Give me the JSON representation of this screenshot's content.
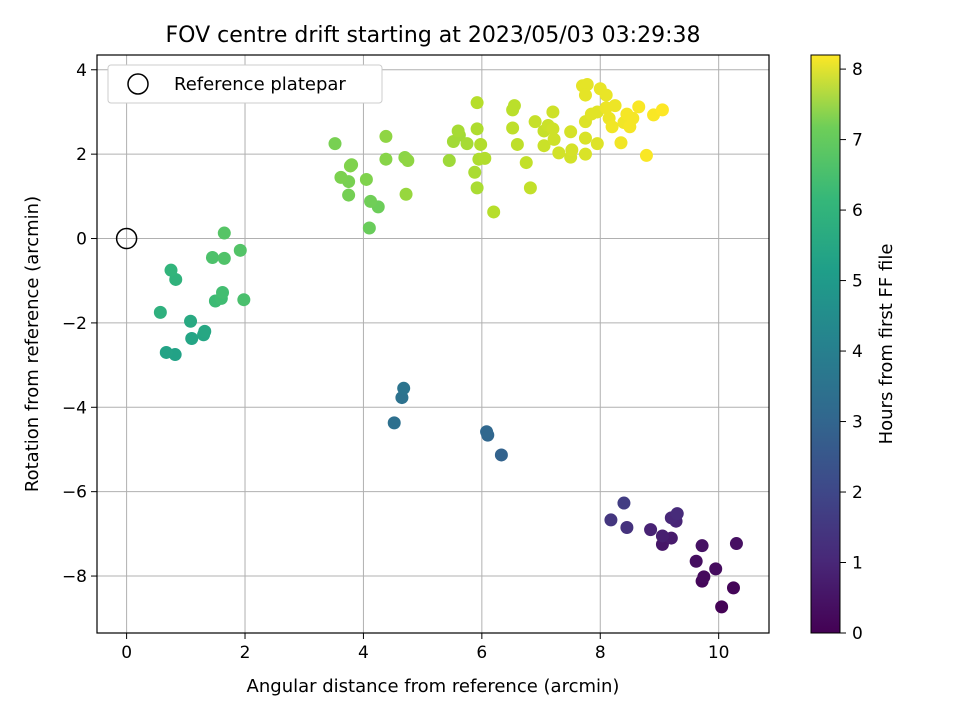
{
  "chart_data": {
    "type": "scatter",
    "title": "FOV centre drift starting at 2023/05/03 03:29:38",
    "xlabel": "Angular distance from reference (arcmin)",
    "ylabel": "Rotation from reference (arcmin)",
    "xlim": [
      -0.5,
      10.85
    ],
    "ylim": [
      -9.35,
      4.35
    ],
    "xticks": [
      0,
      2,
      4,
      6,
      8,
      10
    ],
    "yticks": [
      -8,
      -6,
      -4,
      -2,
      0,
      2,
      4
    ],
    "xtick_labels": [
      "0",
      "2",
      "4",
      "6",
      "8",
      "10"
    ],
    "ytick_labels": [
      "−8",
      "−6",
      "−4",
      "−2",
      "0",
      "2",
      "4"
    ],
    "grid": true,
    "legend": {
      "placement": "top-left",
      "entries": [
        "Reference platepar"
      ]
    },
    "reference_point": {
      "x": 0,
      "y": 0
    },
    "colorbar": {
      "label": "Hours from first FF file",
      "range": [
        0,
        8.2
      ],
      "ticks": [
        0,
        1,
        2,
        3,
        4,
        5,
        6,
        7,
        8
      ],
      "tick_labels": [
        "0",
        "1",
        "2",
        "3",
        "4",
        "5",
        "6",
        "7",
        "8"
      ],
      "colormap": "viridis"
    },
    "points": [
      {
        "x": 10.05,
        "y": -8.73,
        "h": 0.05
      },
      {
        "x": 10.25,
        "y": -8.28,
        "h": 0.1
      },
      {
        "x": 9.72,
        "y": -8.12,
        "h": 0.15
      },
      {
        "x": 9.75,
        "y": -8.02,
        "h": 0.2
      },
      {
        "x": 9.95,
        "y": -7.83,
        "h": 0.25
      },
      {
        "x": 9.62,
        "y": -7.65,
        "h": 0.3
      },
      {
        "x": 10.3,
        "y": -7.23,
        "h": 0.35
      },
      {
        "x": 9.72,
        "y": -7.28,
        "h": 0.4
      },
      {
        "x": 9.05,
        "y": -7.25,
        "h": 0.5
      },
      {
        "x": 9.2,
        "y": -7.1,
        "h": 0.6
      },
      {
        "x": 9.05,
        "y": -7.05,
        "h": 0.7
      },
      {
        "x": 8.85,
        "y": -6.9,
        "h": 0.8
      },
      {
        "x": 9.28,
        "y": -6.7,
        "h": 0.85
      },
      {
        "x": 9.2,
        "y": -6.62,
        "h": 0.9
      },
      {
        "x": 9.3,
        "y": -6.52,
        "h": 1.0
      },
      {
        "x": 8.45,
        "y": -6.85,
        "h": 1.2
      },
      {
        "x": 8.18,
        "y": -6.67,
        "h": 1.3
      },
      {
        "x": 8.4,
        "y": -6.27,
        "h": 1.5
      },
      {
        "x": 6.33,
        "y": -5.13,
        "h": 2.6
      },
      {
        "x": 6.1,
        "y": -4.66,
        "h": 2.7
      },
      {
        "x": 6.08,
        "y": -4.58,
        "h": 2.75
      },
      {
        "x": 4.52,
        "y": -4.37,
        "h": 3.0
      },
      {
        "x": 4.65,
        "y": -3.77,
        "h": 3.1
      },
      {
        "x": 4.68,
        "y": -3.55,
        "h": 3.15
      },
      {
        "x": 0.82,
        "y": -2.75,
        "h": 4.7
      },
      {
        "x": 0.67,
        "y": -2.7,
        "h": 4.75
      },
      {
        "x": 1.1,
        "y": -2.37,
        "h": 4.8
      },
      {
        "x": 1.3,
        "y": -2.28,
        "h": 4.85
      },
      {
        "x": 1.32,
        "y": -2.2,
        "h": 4.9
      },
      {
        "x": 1.08,
        "y": -1.96,
        "h": 4.95
      },
      {
        "x": 0.57,
        "y": -1.75,
        "h": 5.2
      },
      {
        "x": 0.83,
        "y": -0.97,
        "h": 5.3
      },
      {
        "x": 0.75,
        "y": -0.75,
        "h": 5.35
      },
      {
        "x": 1.5,
        "y": -1.48,
        "h": 5.6
      },
      {
        "x": 1.6,
        "y": -1.42,
        "h": 5.65
      },
      {
        "x": 1.62,
        "y": -1.28,
        "h": 5.7
      },
      {
        "x": 1.98,
        "y": -1.45,
        "h": 5.8
      },
      {
        "x": 1.45,
        "y": -0.45,
        "h": 5.85
      },
      {
        "x": 1.65,
        "y": -0.47,
        "h": 5.9
      },
      {
        "x": 1.92,
        "y": -0.28,
        "h": 5.95
      },
      {
        "x": 1.65,
        "y": 0.13,
        "h": 6.0
      },
      {
        "x": 4.1,
        "y": 0.25,
        "h": 6.3
      },
      {
        "x": 4.25,
        "y": 0.75,
        "h": 6.35
      },
      {
        "x": 4.12,
        "y": 0.88,
        "h": 6.4
      },
      {
        "x": 3.75,
        "y": 1.03,
        "h": 6.45
      },
      {
        "x": 3.75,
        "y": 1.35,
        "h": 6.5
      },
      {
        "x": 3.62,
        "y": 1.45,
        "h": 6.55
      },
      {
        "x": 4.05,
        "y": 1.4,
        "h": 6.6
      },
      {
        "x": 3.78,
        "y": 1.72,
        "h": 6.65
      },
      {
        "x": 3.8,
        "y": 1.75,
        "h": 6.6
      },
      {
        "x": 3.52,
        "y": 2.25,
        "h": 6.5
      },
      {
        "x": 4.38,
        "y": 1.88,
        "h": 6.7
      },
      {
        "x": 4.7,
        "y": 1.92,
        "h": 6.75
      },
      {
        "x": 4.75,
        "y": 1.85,
        "h": 6.8
      },
      {
        "x": 4.38,
        "y": 2.42,
        "h": 6.8
      },
      {
        "x": 4.72,
        "y": 1.05,
        "h": 6.9
      },
      {
        "x": 5.45,
        "y": 1.85,
        "h": 7.0
      },
      {
        "x": 5.52,
        "y": 2.3,
        "h": 7.05
      },
      {
        "x": 5.62,
        "y": 2.45,
        "h": 7.05
      },
      {
        "x": 5.6,
        "y": 2.55,
        "h": 7.1
      },
      {
        "x": 5.75,
        "y": 2.25,
        "h": 7.1
      },
      {
        "x": 5.88,
        "y": 1.57,
        "h": 7.15
      },
      {
        "x": 5.92,
        "y": 1.2,
        "h": 7.15
      },
      {
        "x": 5.95,
        "y": 1.88,
        "h": 7.2
      },
      {
        "x": 5.92,
        "y": 2.6,
        "h": 7.2
      },
      {
        "x": 5.98,
        "y": 2.23,
        "h": 7.25
      },
      {
        "x": 6.05,
        "y": 1.9,
        "h": 7.25
      },
      {
        "x": 6.2,
        "y": 0.63,
        "h": 7.3
      },
      {
        "x": 5.92,
        "y": 3.22,
        "h": 7.3
      },
      {
        "x": 6.52,
        "y": 3.05,
        "h": 7.35
      },
      {
        "x": 6.55,
        "y": 3.15,
        "h": 7.35
      },
      {
        "x": 6.52,
        "y": 2.62,
        "h": 7.4
      },
      {
        "x": 6.6,
        "y": 2.23,
        "h": 7.4
      },
      {
        "x": 6.75,
        "y": 1.8,
        "h": 7.45
      },
      {
        "x": 6.82,
        "y": 1.2,
        "h": 7.45
      },
      {
        "x": 6.9,
        "y": 2.77,
        "h": 7.5
      },
      {
        "x": 7.05,
        "y": 2.55,
        "h": 7.5
      },
      {
        "x": 7.05,
        "y": 2.2,
        "h": 7.55
      },
      {
        "x": 7.12,
        "y": 2.68,
        "h": 7.55
      },
      {
        "x": 7.2,
        "y": 3.0,
        "h": 7.6
      },
      {
        "x": 7.2,
        "y": 2.6,
        "h": 7.6
      },
      {
        "x": 7.22,
        "y": 2.35,
        "h": 7.6
      },
      {
        "x": 7.3,
        "y": 2.03,
        "h": 7.65
      },
      {
        "x": 7.5,
        "y": 1.93,
        "h": 7.65
      },
      {
        "x": 7.52,
        "y": 2.1,
        "h": 7.7
      },
      {
        "x": 7.5,
        "y": 2.53,
        "h": 7.7
      },
      {
        "x": 7.75,
        "y": 2.0,
        "h": 7.75
      },
      {
        "x": 7.75,
        "y": 2.38,
        "h": 7.75
      },
      {
        "x": 7.75,
        "y": 2.77,
        "h": 7.8
      },
      {
        "x": 7.95,
        "y": 2.25,
        "h": 7.8
      },
      {
        "x": 7.85,
        "y": 2.95,
        "h": 7.85
      },
      {
        "x": 7.95,
        "y": 3.0,
        "h": 7.85
      },
      {
        "x": 7.7,
        "y": 3.62,
        "h": 7.9
      },
      {
        "x": 7.78,
        "y": 3.65,
        "h": 7.9
      },
      {
        "x": 7.75,
        "y": 3.4,
        "h": 7.9
      },
      {
        "x": 8.0,
        "y": 3.55,
        "h": 7.95
      },
      {
        "x": 8.1,
        "y": 3.4,
        "h": 7.95
      },
      {
        "x": 8.1,
        "y": 3.1,
        "h": 8.0
      },
      {
        "x": 8.15,
        "y": 2.85,
        "h": 8.0
      },
      {
        "x": 8.25,
        "y": 3.15,
        "h": 8.0
      },
      {
        "x": 8.2,
        "y": 2.65,
        "h": 8.05
      },
      {
        "x": 8.4,
        "y": 2.75,
        "h": 8.05
      },
      {
        "x": 8.35,
        "y": 2.27,
        "h": 8.05
      },
      {
        "x": 8.45,
        "y": 2.95,
        "h": 8.1
      },
      {
        "x": 8.5,
        "y": 2.65,
        "h": 8.1
      },
      {
        "x": 8.55,
        "y": 2.85,
        "h": 8.1
      },
      {
        "x": 8.65,
        "y": 3.12,
        "h": 8.15
      },
      {
        "x": 8.78,
        "y": 1.97,
        "h": 8.15
      },
      {
        "x": 8.9,
        "y": 2.93,
        "h": 8.15
      },
      {
        "x": 9.05,
        "y": 3.05,
        "h": 8.2
      }
    ]
  }
}
